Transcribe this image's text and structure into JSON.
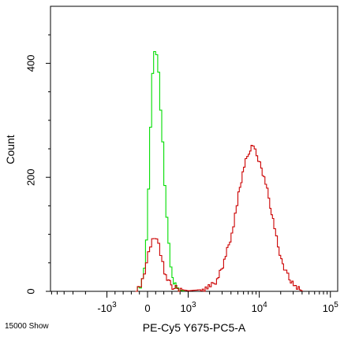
{
  "chart_data": {
    "type": "line",
    "xlabel": "PE-Cy5 Y675-PC5-A",
    "ylabel": "Count",
    "footer_note": "15000 Show",
    "x_scale": "biexponential",
    "x_ticks": [
      {
        "base": "-10",
        "exp": "3",
        "value": -1000
      },
      {
        "base": "0",
        "exp": "",
        "value": 0
      },
      {
        "base": "10",
        "exp": "3",
        "value": 1000
      },
      {
        "base": "10",
        "exp": "4",
        "value": 10000
      },
      {
        "base": "10",
        "exp": "5",
        "value": 100000
      }
    ],
    "y_ticks": [
      "0",
      "200",
      "400"
    ],
    "ylim": [
      0,
      500
    ],
    "grid": false,
    "series": [
      {
        "color": "#00dd00",
        "points": [
          [
            -300,
            0
          ],
          [
            -250,
            3
          ],
          [
            -200,
            8
          ],
          [
            -150,
            20
          ],
          [
            -100,
            45
          ],
          [
            -50,
            90
          ],
          [
            0,
            175
          ],
          [
            50,
            290
          ],
          [
            100,
            380
          ],
          [
            150,
            425
          ],
          [
            200,
            415
          ],
          [
            250,
            380
          ],
          [
            300,
            320
          ],
          [
            350,
            260
          ],
          [
            400,
            190
          ],
          [
            450,
            130
          ],
          [
            500,
            80
          ],
          [
            550,
            45
          ],
          [
            600,
            22
          ],
          [
            700,
            8
          ],
          [
            800,
            2
          ],
          [
            900,
            0
          ]
        ]
      },
      {
        "color": "#cc0000",
        "points": [
          [
            -300,
            0
          ],
          [
            -250,
            4
          ],
          [
            -200,
            10
          ],
          [
            -150,
            20
          ],
          [
            -100,
            35
          ],
          [
            -50,
            50
          ],
          [
            0,
            65
          ],
          [
            50,
            80
          ],
          [
            100,
            90
          ],
          [
            150,
            97
          ],
          [
            200,
            92
          ],
          [
            250,
            80
          ],
          [
            300,
            65
          ],
          [
            350,
            50
          ],
          [
            400,
            35
          ],
          [
            500,
            18
          ],
          [
            600,
            8
          ],
          [
            800,
            3
          ],
          [
            1000,
            1
          ],
          [
            1500,
            3
          ],
          [
            2000,
            8
          ],
          [
            2500,
            20
          ],
          [
            3000,
            45
          ],
          [
            4000,
            100
          ],
          [
            5000,
            170
          ],
          [
            6000,
            220
          ],
          [
            7000,
            245
          ],
          [
            8000,
            255
          ],
          [
            9000,
            240
          ],
          [
            10000,
            225
          ],
          [
            12000,
            190
          ],
          [
            14000,
            150
          ],
          [
            16000,
            110
          ],
          [
            18000,
            80
          ],
          [
            20000,
            55
          ],
          [
            23000,
            35
          ],
          [
            26000,
            20
          ],
          [
            30000,
            10
          ],
          [
            35000,
            4
          ],
          [
            40000,
            0
          ]
        ]
      }
    ]
  }
}
